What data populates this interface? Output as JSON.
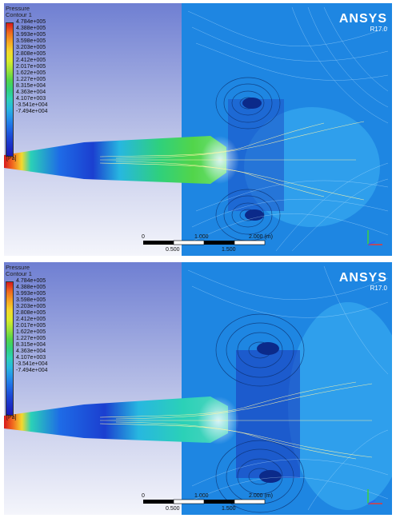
{
  "legend": {
    "title": "Pressure",
    "subtitle": "Contour 1",
    "unit": "[Pa]",
    "labels": [
      "4.784e+005",
      "4.388e+005",
      "3.993e+005",
      "3.598e+005",
      "3.203e+005",
      "2.808e+005",
      "2.412e+005",
      "2.017e+005",
      "1.622e+005",
      "1.227e+005",
      "8.315e+004",
      "4.363e+004",
      "4.107e+003",
      "-3.541e+004",
      "-7.494e+004"
    ],
    "colors": [
      "#d7191c",
      "#ee6a1f",
      "#f6a623",
      "#f4d92d",
      "#d8ec2c",
      "#9be23a",
      "#52d54a",
      "#2fd07c",
      "#2bd1b7",
      "#27b7e0",
      "#2391ea",
      "#1e6be6",
      "#1b48d6",
      "#1a2ec6",
      "#1a1ab6"
    ]
  },
  "logo": {
    "name": "ANSYS",
    "version": "R17.0"
  },
  "panels": [
    {
      "scale": {
        "ticks_top": [
          "0",
          "1.000",
          "2.000 (m)"
        ],
        "ticks_bottom": [
          "0.500",
          "1.500"
        ]
      }
    },
    {
      "scale": {
        "ticks_top": [
          "0",
          "1.000",
          "2.000 (m)"
        ],
        "ticks_bottom": [
          "0.500",
          "1.500"
        ]
      }
    }
  ]
}
